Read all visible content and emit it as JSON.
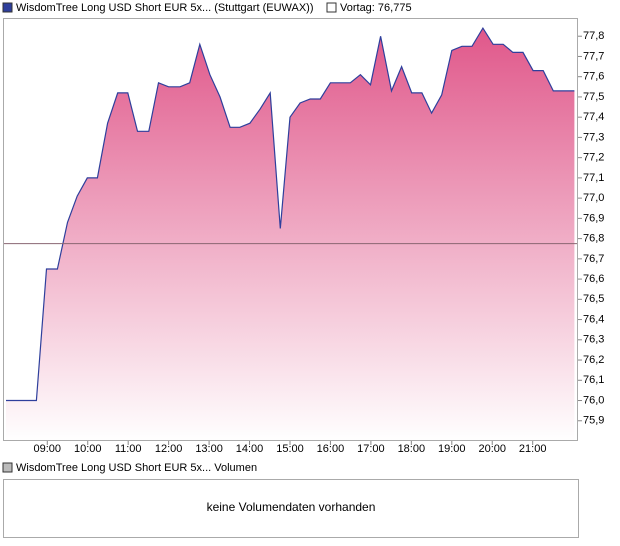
{
  "chart_data": {
    "type": "line",
    "series": [
      {
        "name": "WisdomTree Long USD Short EUR 5x... (Stuttgart (EUWAX))",
        "color": "#2e3f9c",
        "fill": "#e0578a",
        "x": [
          7.98,
          8.73,
          8.98,
          9.25,
          9.5,
          9.74,
          9.99,
          10.24,
          10.49,
          10.74,
          10.99,
          11.23,
          11.51,
          11.75,
          12.0,
          12.28,
          12.52,
          12.77,
          13.02,
          13.27,
          13.52,
          13.76,
          14.01,
          14.26,
          14.51,
          14.76,
          15.0,
          15.25,
          15.5,
          15.75,
          16.0,
          16.25,
          16.49,
          16.74,
          16.99,
          17.24,
          17.51,
          17.76,
          18.01,
          18.26,
          18.5,
          18.75,
          19.0,
          19.25,
          19.5,
          19.77,
          20.02,
          20.27,
          20.51,
          20.76,
          21.01,
          21.26,
          21.51,
          21.75,
          22.03
        ],
        "values": [
          76.0,
          76.0,
          76.65,
          76.65,
          76.88,
          77.01,
          77.1,
          77.1,
          77.37,
          77.52,
          77.52,
          77.33,
          77.33,
          77.57,
          77.55,
          77.55,
          77.57,
          77.76,
          77.61,
          77.5,
          77.35,
          77.35,
          77.37,
          77.44,
          77.52,
          76.85,
          77.4,
          77.47,
          77.49,
          77.49,
          77.57,
          77.57,
          77.57,
          77.61,
          77.56,
          77.8,
          77.53,
          77.65,
          77.52,
          77.52,
          77.42,
          77.51,
          77.73,
          77.75,
          77.75,
          77.84,
          77.76,
          77.76,
          77.72,
          77.72,
          77.63,
          77.63,
          77.53,
          77.53,
          77.53
        ]
      }
    ],
    "reference_line": {
      "label": "Vortag: 76,775",
      "value": 76.775,
      "color": "#8a6672"
    },
    "xlim": [
      7.93,
      22.12
    ],
    "xticks": [
      {
        "value": 9,
        "label": "09:00"
      },
      {
        "value": 10,
        "label": "10:00"
      },
      {
        "value": 11,
        "label": "11:00"
      },
      {
        "value": 12,
        "label": "12:00"
      },
      {
        "value": 13,
        "label": "13:00"
      },
      {
        "value": 14,
        "label": "14:00"
      },
      {
        "value": 15,
        "label": "15:00"
      },
      {
        "value": 16,
        "label": "16:00"
      },
      {
        "value": 17,
        "label": "17:00"
      },
      {
        "value": 18,
        "label": "18:00"
      },
      {
        "value": 19,
        "label": "19:00"
      },
      {
        "value": 20,
        "label": "20:00"
      },
      {
        "value": 21,
        "label": "21:00"
      }
    ],
    "ylim": [
      75.8,
      77.89
    ],
    "yticks": [
      {
        "value": 75.9,
        "label": "75,9"
      },
      {
        "value": 76.0,
        "label": "76,0"
      },
      {
        "value": 76.1,
        "label": "76,1"
      },
      {
        "value": 76.2,
        "label": "76,2"
      },
      {
        "value": 76.3,
        "label": "76,3"
      },
      {
        "value": 76.4,
        "label": "76,4"
      },
      {
        "value": 76.5,
        "label": "76,5"
      },
      {
        "value": 76.6,
        "label": "76,6"
      },
      {
        "value": 76.7,
        "label": "76,7"
      },
      {
        "value": 76.8,
        "label": "76,8"
      },
      {
        "value": 76.9,
        "label": "76,9"
      },
      {
        "value": 77.0,
        "label": "77,0"
      },
      {
        "value": 77.1,
        "label": "77,1"
      },
      {
        "value": 77.2,
        "label": "77,2"
      },
      {
        "value": 77.3,
        "label": "77,3"
      },
      {
        "value": 77.4,
        "label": "77,4"
      },
      {
        "value": 77.5,
        "label": "77,5"
      },
      {
        "value": 77.6,
        "label": "77,6"
      },
      {
        "value": 77.7,
        "label": "77,7"
      },
      {
        "value": 77.8,
        "label": "77,8"
      }
    ]
  },
  "volume_panel": {
    "legend": "WisdomTree Long USD Short EUR 5x... Volumen",
    "message": "keine Volumendaten vorhanden"
  }
}
